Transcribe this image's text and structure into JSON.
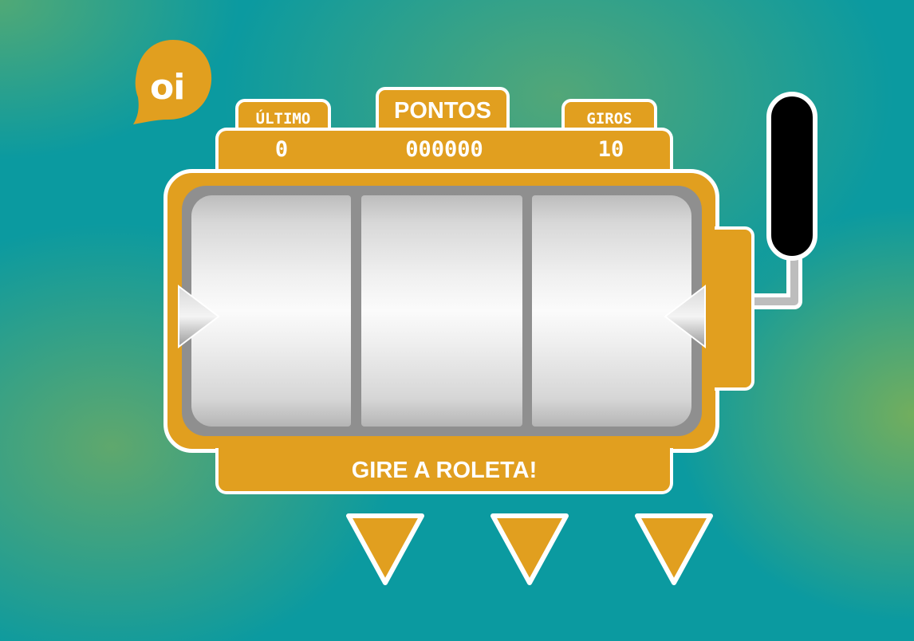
{
  "brand": {
    "logo_text": "oi",
    "color": "#e19f1f"
  },
  "labels": {
    "last": "ÚLTIMO",
    "points": "PONTOS",
    "spins": "GIROS"
  },
  "scores": {
    "last": "0",
    "points": "000000",
    "spins": "10"
  },
  "message": "GIRE A ROLETA!",
  "colors": {
    "background": "#0b9aa0",
    "machine": "#e19f1f",
    "outline": "#ffffff",
    "lever_knob": "#000000",
    "reel": "#f0f0f0"
  },
  "reels": [
    {
      "name": "reel-1"
    },
    {
      "name": "reel-2"
    },
    {
      "name": "reel-3"
    }
  ],
  "stop_buttons": [
    {
      "icon": "triangle-down-icon"
    },
    {
      "icon": "triangle-down-icon"
    },
    {
      "icon": "triangle-down-icon"
    }
  ]
}
